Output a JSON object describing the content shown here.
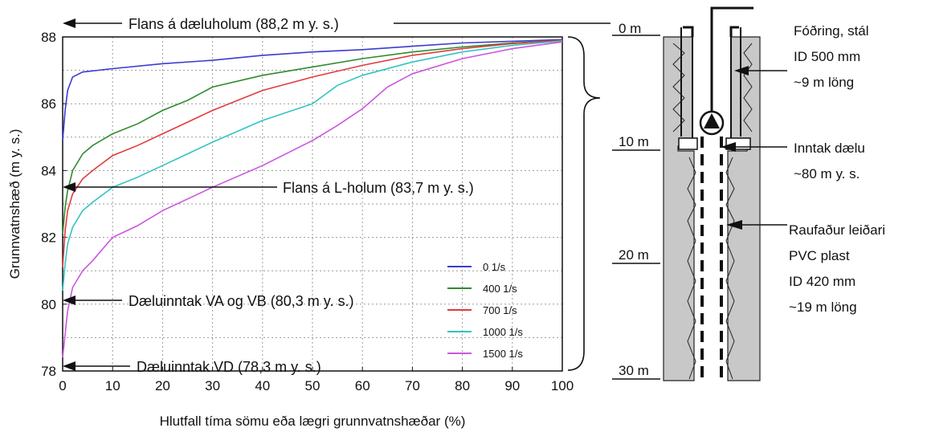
{
  "chart_data": {
    "type": "line",
    "title": "",
    "xlabel": "Hlutfall tíma sömu eða lægri grunnvatnshæðar (%)",
    "ylabel": "Grunnvatnshæð (m y. s.)",
    "xlim": [
      0,
      100
    ],
    "ylim": [
      78,
      88
    ],
    "grid": true,
    "legend_position": "bottom-right",
    "x_ticks": [
      "0",
      "10",
      "20",
      "30",
      "40",
      "50",
      "60",
      "70",
      "80",
      "90",
      "100"
    ],
    "y_ticks": [
      "78",
      "80",
      "82",
      "84",
      "86",
      "88"
    ],
    "series": [
      {
        "name": "0 1/s",
        "color": "#3b3bd1",
        "points": [
          [
            0,
            84.9
          ],
          [
            0.5,
            85.8
          ],
          [
            1,
            86.4
          ],
          [
            2,
            86.8
          ],
          [
            4,
            86.95
          ],
          [
            10,
            87.05
          ],
          [
            20,
            87.2
          ],
          [
            30,
            87.3
          ],
          [
            40,
            87.45
          ],
          [
            50,
            87.55
          ],
          [
            60,
            87.62
          ],
          [
            70,
            87.72
          ],
          [
            80,
            87.82
          ],
          [
            90,
            87.87
          ],
          [
            100,
            87.92
          ]
        ]
      },
      {
        "name": "400 1/s",
        "color": "#2e8b2e",
        "points": [
          [
            0,
            82.1
          ],
          [
            0.5,
            82.9
          ],
          [
            1,
            83.4
          ],
          [
            2,
            84.0
          ],
          [
            4,
            84.5
          ],
          [
            6,
            84.75
          ],
          [
            10,
            85.1
          ],
          [
            15,
            85.4
          ],
          [
            20,
            85.8
          ],
          [
            25,
            86.1
          ],
          [
            30,
            86.5
          ],
          [
            40,
            86.85
          ],
          [
            50,
            87.1
          ],
          [
            60,
            87.35
          ],
          [
            70,
            87.55
          ],
          [
            80,
            87.7
          ],
          [
            90,
            87.82
          ],
          [
            100,
            87.9
          ]
        ]
      },
      {
        "name": "700 1/s",
        "color": "#e03c3c",
        "points": [
          [
            0,
            81.1
          ],
          [
            0.5,
            82.2
          ],
          [
            1,
            82.8
          ],
          [
            2,
            83.3
          ],
          [
            4,
            83.75
          ],
          [
            6,
            84.0
          ],
          [
            10,
            84.45
          ],
          [
            15,
            84.75
          ],
          [
            20,
            85.1
          ],
          [
            25,
            85.45
          ],
          [
            30,
            85.8
          ],
          [
            40,
            86.4
          ],
          [
            50,
            86.8
          ],
          [
            60,
            87.15
          ],
          [
            70,
            87.45
          ],
          [
            80,
            87.65
          ],
          [
            90,
            87.8
          ],
          [
            100,
            87.9
          ]
        ]
      },
      {
        "name": "1000 1/s",
        "color": "#33c3c3",
        "points": [
          [
            0,
            80.4
          ],
          [
            0.5,
            81.2
          ],
          [
            1,
            81.8
          ],
          [
            2,
            82.3
          ],
          [
            4,
            82.8
          ],
          [
            6,
            83.05
          ],
          [
            10,
            83.5
          ],
          [
            15,
            83.8
          ],
          [
            20,
            84.15
          ],
          [
            25,
            84.5
          ],
          [
            30,
            84.85
          ],
          [
            40,
            85.5
          ],
          [
            50,
            86.0
          ],
          [
            55,
            86.55
          ],
          [
            60,
            86.85
          ],
          [
            70,
            87.25
          ],
          [
            80,
            87.55
          ],
          [
            90,
            87.75
          ],
          [
            100,
            87.88
          ]
        ]
      },
      {
        "name": "1500 1/s",
        "color": "#cc55e0",
        "points": [
          [
            0,
            78.4
          ],
          [
            0.5,
            79.1
          ],
          [
            1,
            79.8
          ],
          [
            2,
            80.5
          ],
          [
            4,
            81.0
          ],
          [
            6,
            81.3
          ],
          [
            10,
            82.0
          ],
          [
            15,
            82.35
          ],
          [
            20,
            82.8
          ],
          [
            25,
            83.15
          ],
          [
            30,
            83.5
          ],
          [
            40,
            84.15
          ],
          [
            50,
            84.9
          ],
          [
            55,
            85.35
          ],
          [
            60,
            85.85
          ],
          [
            65,
            86.5
          ],
          [
            70,
            86.9
          ],
          [
            80,
            87.35
          ],
          [
            90,
            87.65
          ],
          [
            100,
            87.85
          ]
        ]
      }
    ],
    "annotations": [
      {
        "text": "Flans á dæluholum (88,2 m y. s.)",
        "y": 88.2
      },
      {
        "text": "Flans á L-holum (83,7 m y. s.)",
        "y": 83.7
      },
      {
        "text": "Dæluinntak VA og VB (80,3 m y. s.)",
        "y": 80.3
      },
      {
        "text": "Dæluinntak VD (78,3 m y. s.)",
        "y": 78.3
      }
    ]
  },
  "well_diagram": {
    "depth_labels": [
      "0 m",
      "10 m",
      "20 m",
      "30 m"
    ],
    "casing_lines": [
      "Fóðring, stál",
      "ID 500 mm",
      "~9 m löng"
    ],
    "intake_lines": [
      "Inntak dælu",
      "~80 m y. s."
    ],
    "screen_lines": [
      "Raufaður leiðari",
      "PVC plast",
      "ID 420 mm",
      "~19 m löng"
    ]
  }
}
